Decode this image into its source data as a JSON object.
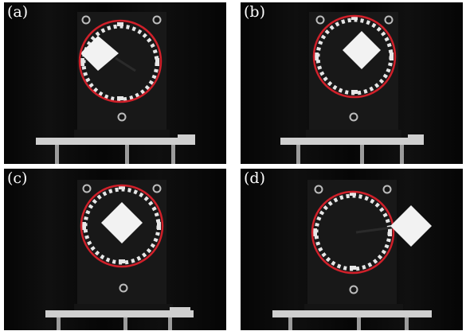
{
  "panels": [
    {
      "id": "a",
      "label": "(a)",
      "marker_position": "on-ring-left"
    },
    {
      "id": "b",
      "label": "(b)",
      "marker_position": "center"
    },
    {
      "id": "c",
      "label": "(c)",
      "marker_position": "center"
    },
    {
      "id": "d",
      "label": "(d)",
      "marker_position": "outside-ring-right"
    }
  ],
  "colors": {
    "background": "#070707",
    "board": "#181818",
    "ring": "#d0202a",
    "marker": "#f2f2f2",
    "dots": "#e0e0e0",
    "stand": "#cfcfcf"
  }
}
